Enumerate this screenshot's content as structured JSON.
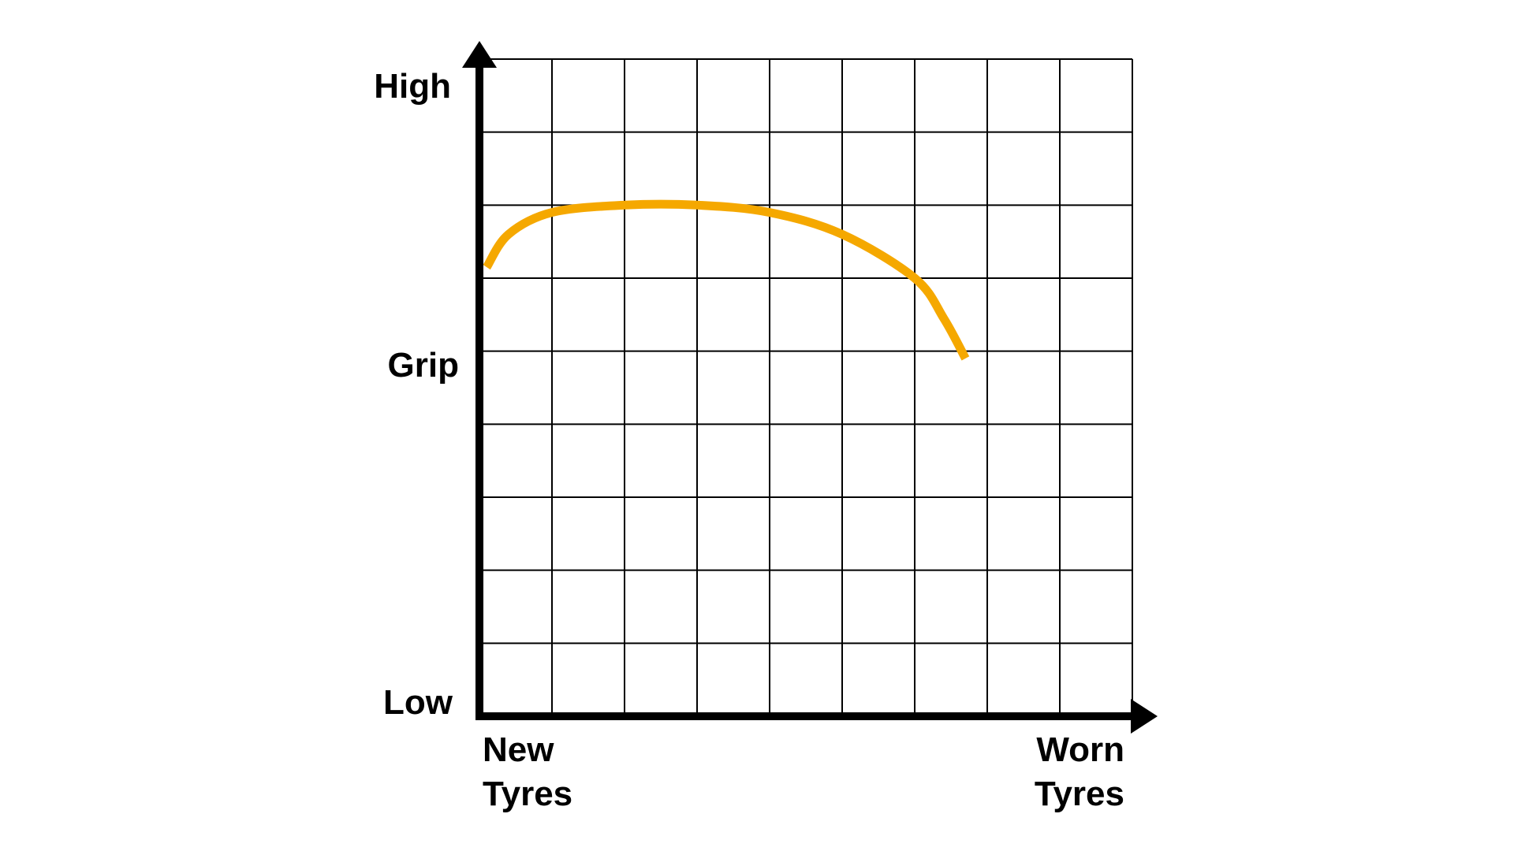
{
  "chart_data": {
    "type": "line",
    "y_axis": {
      "label": "Grip",
      "top_label": "High",
      "bottom_label": "Low",
      "range": [
        0,
        9
      ]
    },
    "x_axis": {
      "left_label_lines": [
        "New",
        "Tyres"
      ],
      "right_label_lines": [
        "Worn",
        "Tyres"
      ],
      "range": [
        0,
        9
      ]
    },
    "grid": true,
    "grid_cells": {
      "columns": 9,
      "rows": 9
    },
    "series": [
      {
        "color": "#F5A800",
        "points": [
          {
            "x": 0.1,
            "y": 6.15
          },
          {
            "x": 0.4,
            "y": 6.6
          },
          {
            "x": 1.0,
            "y": 6.9
          },
          {
            "x": 2.0,
            "y": 7.0
          },
          {
            "x": 3.0,
            "y": 7.0
          },
          {
            "x": 4.0,
            "y": 6.9
          },
          {
            "x": 5.0,
            "y": 6.6
          },
          {
            "x": 6.0,
            "y": 6.0
          },
          {
            "x": 6.4,
            "y": 5.45
          },
          {
            "x": 6.7,
            "y": 4.9
          }
        ]
      }
    ],
    "colors": {
      "axis": "#000000",
      "grid": "#000000",
      "line": "#F5A800"
    }
  }
}
